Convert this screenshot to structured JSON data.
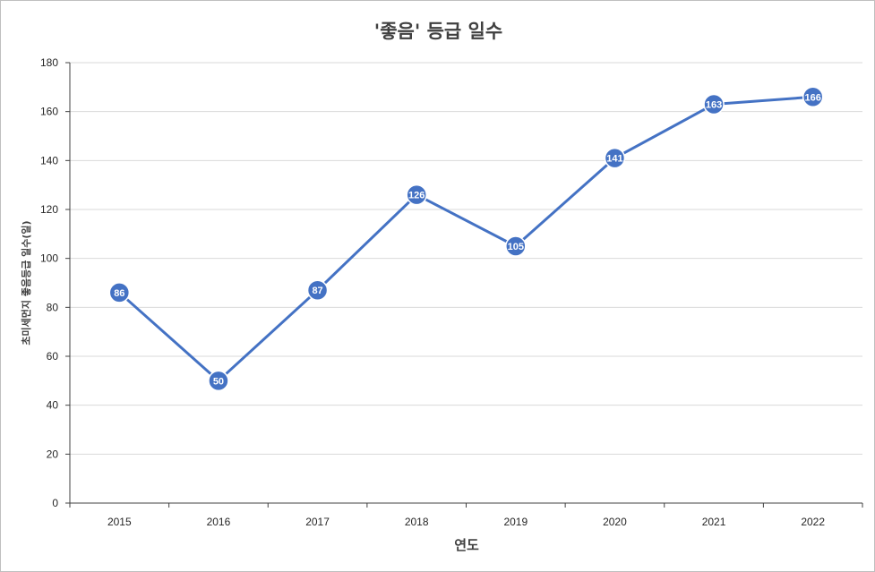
{
  "chart_data": {
    "type": "line",
    "title": "'좋음' 등급 일수",
    "xlabel": "연도",
    "ylabel": "초미세먼지 좋음등급 일수(일)",
    "categories": [
      "2015",
      "2016",
      "2017",
      "2018",
      "2019",
      "2020",
      "2021",
      "2022"
    ],
    "series": [
      {
        "values": [
          86,
          50,
          87,
          126,
          105,
          141,
          163,
          166
        ],
        "color": "#4472c4"
      }
    ],
    "ylim": [
      0,
      180
    ],
    "yticks": [
      0,
      20,
      40,
      60,
      80,
      100,
      120,
      140,
      160,
      180
    ],
    "grid": true,
    "data_labels": true
  }
}
